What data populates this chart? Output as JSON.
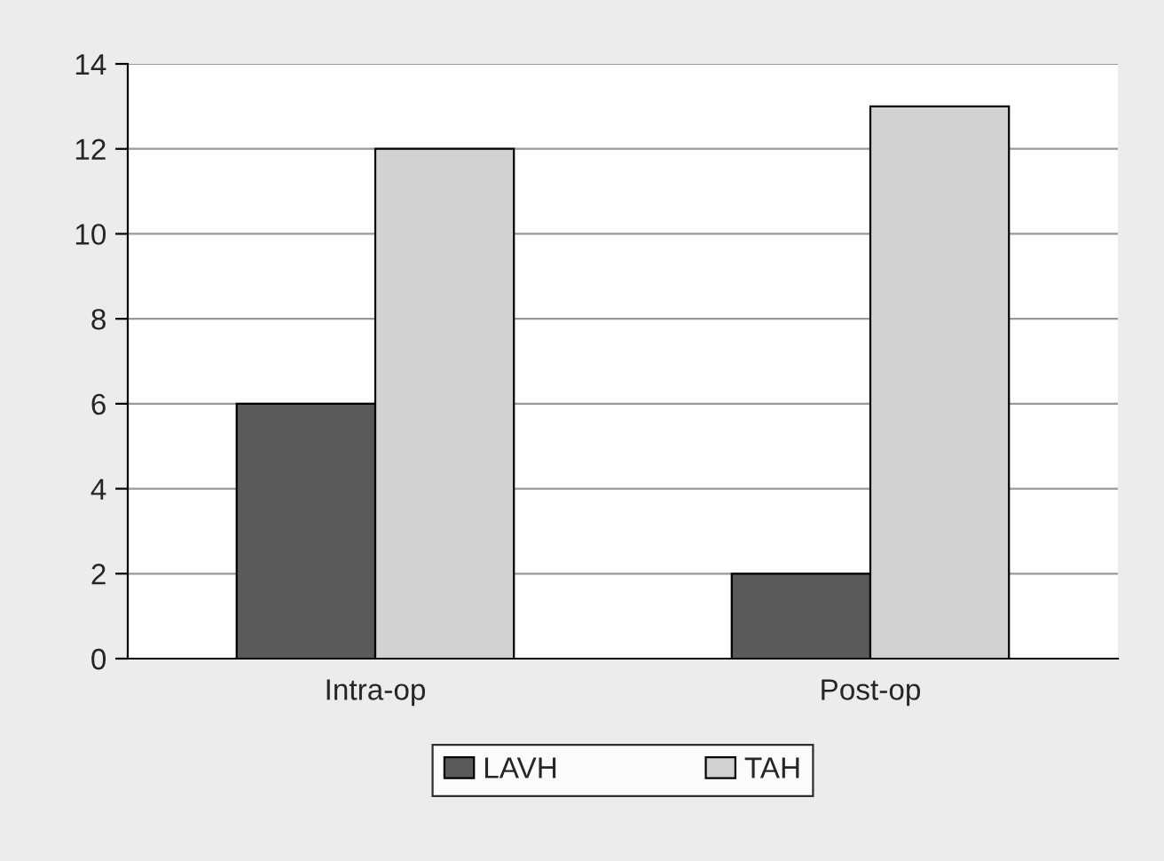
{
  "chart_data": {
    "type": "bar",
    "categories": [
      "Intra-op",
      "Post-op"
    ],
    "series": [
      {
        "name": "LAVH",
        "color": "#5a5a5a",
        "values": [
          6,
          2
        ]
      },
      {
        "name": "TAH",
        "color": "#d2d2d4",
        "values": [
          12,
          13
        ]
      }
    ],
    "ylim": [
      0,
      14
    ],
    "yticks": [
      0,
      2,
      4,
      6,
      8,
      10,
      12,
      14
    ],
    "grid": "y",
    "legend": "bottom"
  }
}
